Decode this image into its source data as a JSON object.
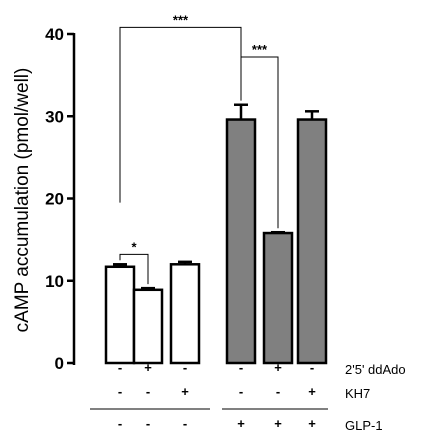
{
  "chart_data": {
    "type": "bar",
    "ylabel": "cAMP accumulation (pmol/well)",
    "ylim": [
      0,
      40
    ],
    "yticks": [
      0,
      10,
      20,
      30,
      40
    ],
    "grid": false,
    "bars": [
      {
        "value": 11.7,
        "error": 0.3,
        "fill": "#ffffff"
      },
      {
        "value": 8.9,
        "error": 0.2,
        "fill": "#ffffff"
      },
      {
        "value": 12.0,
        "error": 0.3,
        "fill": "#ffffff"
      },
      {
        "value": 29.6,
        "error": 1.8,
        "fill": "#808080"
      },
      {
        "value": 15.8,
        "error": 0.1,
        "fill": "#808080"
      },
      {
        "value": 29.6,
        "error": 1.0,
        "fill": "#808080"
      }
    ],
    "conditions": [
      {
        "label": "2'5' ddAdo",
        "signs": [
          "-",
          "+",
          "-",
          "-",
          "+",
          "-"
        ]
      },
      {
        "label": "KH7",
        "signs": [
          "-",
          "-",
          "+",
          "-",
          "-",
          "+"
        ]
      },
      {
        "label": "GLP-1",
        "signs": [
          "-",
          "-",
          "-",
          "+",
          "+",
          "+"
        ]
      }
    ],
    "significance": [
      {
        "from": 0,
        "to": 1,
        "label": "*"
      },
      {
        "from": 3,
        "to": 4,
        "label": "***"
      },
      {
        "from": 0,
        "to": 3,
        "label": "***"
      }
    ]
  }
}
